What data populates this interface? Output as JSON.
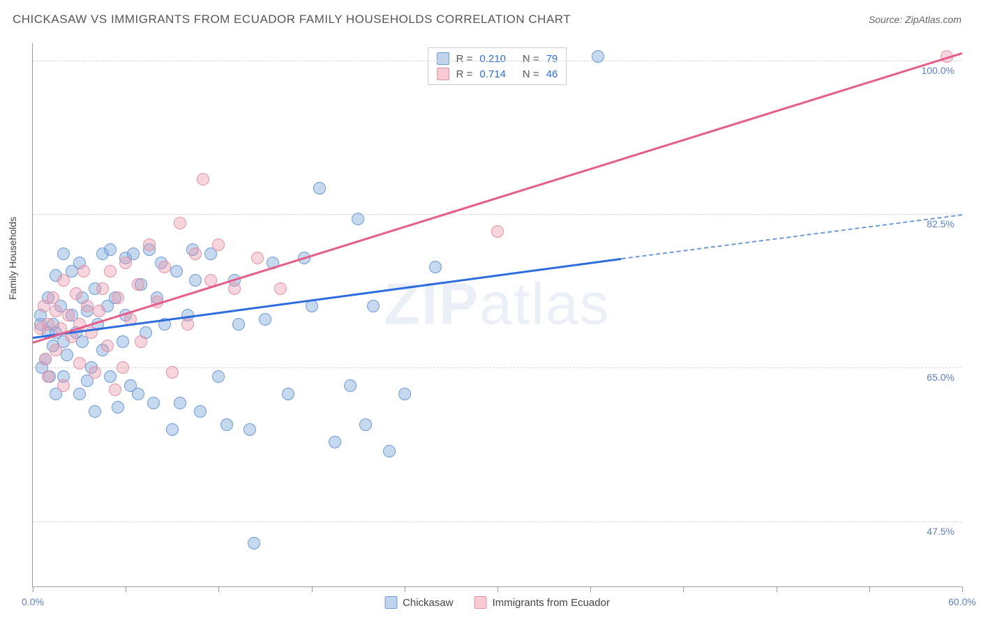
{
  "header": {
    "title": "CHICKASAW VS IMMIGRANTS FROM ECUADOR FAMILY HOUSEHOLDS CORRELATION CHART",
    "source": "Source: ZipAtlas.com"
  },
  "watermark": {
    "zip": "ZIP",
    "atlas": "atlas"
  },
  "chart": {
    "type": "scatter",
    "y_label": "Family Households",
    "background_color": "#ffffff",
    "grid_color": "#d5d5d5",
    "xlim": [
      0,
      60
    ],
    "ylim": [
      40,
      102
    ],
    "x_ticks": [
      0,
      6,
      12,
      18,
      24,
      30,
      36,
      42,
      48,
      54,
      60
    ],
    "x_tick_labels": {
      "0": "0.0%",
      "60": "60.0%"
    },
    "y_grid": [
      47.5,
      65.0,
      82.5,
      100.0
    ],
    "y_tick_labels": [
      "47.5%",
      "65.0%",
      "82.5%",
      "100.0%"
    ],
    "point_radius": 9,
    "series": [
      {
        "name": "Chickasaw",
        "color_fill": "rgba(130,170,220,0.45)",
        "color_stroke": "#6a9bd8",
        "trend_color": "#2d6cdf",
        "r": "0.210",
        "n": "79",
        "trend": {
          "x1": 0,
          "y1": 68.5,
          "x2": 38,
          "y2": 77.5,
          "x2_dashed": 60,
          "y2_dashed": 82.5
        },
        "points": [
          [
            0.5,
            70
          ],
          [
            0.5,
            71
          ],
          [
            0.6,
            65
          ],
          [
            0.8,
            66
          ],
          [
            1.0,
            69
          ],
          [
            1.0,
            73
          ],
          [
            1.1,
            64
          ],
          [
            1.3,
            70
          ],
          [
            1.3,
            67.5
          ],
          [
            1.5,
            75.5
          ],
          [
            1.5,
            62
          ],
          [
            1.5,
            69
          ],
          [
            1.8,
            72
          ],
          [
            2.0,
            64
          ],
          [
            2.0,
            68
          ],
          [
            2.0,
            78
          ],
          [
            2.2,
            66.5
          ],
          [
            2.5,
            71
          ],
          [
            2.5,
            76
          ],
          [
            2.8,
            69
          ],
          [
            3.0,
            62
          ],
          [
            3.0,
            77
          ],
          [
            3.2,
            73
          ],
          [
            3.2,
            68
          ],
          [
            3.5,
            71.5
          ],
          [
            3.5,
            63.5
          ],
          [
            3.8,
            65
          ],
          [
            4.0,
            74
          ],
          [
            4.0,
            60
          ],
          [
            4.2,
            70
          ],
          [
            4.5,
            67
          ],
          [
            4.5,
            78
          ],
          [
            4.8,
            72
          ],
          [
            5.0,
            64
          ],
          [
            5.0,
            78.5
          ],
          [
            5.3,
            73
          ],
          [
            5.5,
            60.5
          ],
          [
            5.8,
            68
          ],
          [
            6.0,
            77.5
          ],
          [
            6.0,
            71
          ],
          [
            6.3,
            63
          ],
          [
            6.5,
            78
          ],
          [
            6.8,
            62
          ],
          [
            7.0,
            74.5
          ],
          [
            7.3,
            69
          ],
          [
            7.5,
            78.5
          ],
          [
            7.8,
            61
          ],
          [
            8.0,
            73
          ],
          [
            8.3,
            77
          ],
          [
            8.5,
            70
          ],
          [
            9.0,
            58
          ],
          [
            9.3,
            76
          ],
          [
            9.5,
            61
          ],
          [
            10.0,
            71
          ],
          [
            10.3,
            78.5
          ],
          [
            10.5,
            75
          ],
          [
            10.8,
            60
          ],
          [
            11.5,
            78
          ],
          [
            12.0,
            64
          ],
          [
            12.5,
            58.5
          ],
          [
            13.0,
            75
          ],
          [
            13.3,
            70
          ],
          [
            14.0,
            58
          ],
          [
            14.3,
            45
          ],
          [
            15.0,
            70.5
          ],
          [
            15.5,
            77
          ],
          [
            16.5,
            62
          ],
          [
            17.5,
            77.5
          ],
          [
            18.0,
            72
          ],
          [
            18.5,
            85.5
          ],
          [
            19.5,
            56.5
          ],
          [
            20.5,
            63
          ],
          [
            21.0,
            82
          ],
          [
            21.5,
            58.5
          ],
          [
            22.0,
            72
          ],
          [
            23.0,
            55.5
          ],
          [
            24.0,
            62
          ],
          [
            26.0,
            76.5
          ],
          [
            36.5,
            100.5
          ]
        ]
      },
      {
        "name": "Immigrants from Ecuador",
        "color_fill": "rgba(235,150,170,0.4)",
        "color_stroke": "#e590a5",
        "trend_color": "#e75d8a",
        "r": "0.714",
        "n": "46",
        "trend": {
          "x1": 0,
          "y1": 68,
          "x2": 60,
          "y2": 101
        },
        "points": [
          [
            0.5,
            69.5
          ],
          [
            0.7,
            72
          ],
          [
            0.8,
            66
          ],
          [
            1.0,
            70
          ],
          [
            1.0,
            64
          ],
          [
            1.3,
            73
          ],
          [
            1.5,
            71.5
          ],
          [
            1.5,
            67
          ],
          [
            1.8,
            69.5
          ],
          [
            2.0,
            75
          ],
          [
            2.0,
            63
          ],
          [
            2.3,
            71
          ],
          [
            2.5,
            68.5
          ],
          [
            2.8,
            73.5
          ],
          [
            3.0,
            70
          ],
          [
            3.0,
            65.5
          ],
          [
            3.3,
            76
          ],
          [
            3.5,
            72
          ],
          [
            3.8,
            69
          ],
          [
            4.0,
            64.5
          ],
          [
            4.3,
            71.5
          ],
          [
            4.5,
            74
          ],
          [
            4.8,
            67.5
          ],
          [
            5.0,
            76
          ],
          [
            5.3,
            62.5
          ],
          [
            5.5,
            73
          ],
          [
            5.8,
            65
          ],
          [
            6.0,
            77
          ],
          [
            6.3,
            70.5
          ],
          [
            6.8,
            74.5
          ],
          [
            7.0,
            68
          ],
          [
            7.5,
            79
          ],
          [
            8.0,
            72.5
          ],
          [
            8.5,
            76.5
          ],
          [
            9.0,
            64.5
          ],
          [
            9.5,
            81.5
          ],
          [
            10.0,
            70
          ],
          [
            10.5,
            78
          ],
          [
            11.0,
            86.5
          ],
          [
            11.5,
            75
          ],
          [
            12.0,
            79
          ],
          [
            13.0,
            74
          ],
          [
            14.5,
            77.5
          ],
          [
            16.0,
            74
          ],
          [
            30.0,
            80.5
          ],
          [
            59.0,
            100.5
          ]
        ]
      }
    ]
  },
  "legend_top": {
    "r_label": "R =",
    "n_label": "N ="
  },
  "legend_bottom": {
    "items": [
      "Chickasaw",
      "Immigrants from Ecuador"
    ]
  }
}
